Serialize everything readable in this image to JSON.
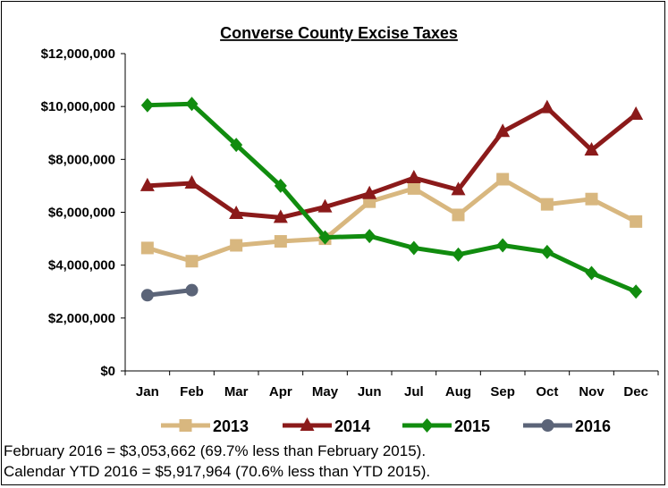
{
  "chart_data": {
    "type": "line",
    "title": "Converse County Excise Taxes",
    "xlabel": "",
    "ylabel": "",
    "categories": [
      "Jan",
      "Feb",
      "Mar",
      "Apr",
      "May",
      "Jun",
      "Jul",
      "Aug",
      "Sep",
      "Oct",
      "Nov",
      "Dec"
    ],
    "ylim": [
      0,
      12000000
    ],
    "yticks": [
      0,
      2000000,
      4000000,
      6000000,
      8000000,
      10000000,
      12000000
    ],
    "ytick_labels": [
      "$0",
      "$2,000,000",
      "$4,000,000",
      "$6,000,000",
      "$8,000,000",
      "$10,000,000",
      "$12,000,000"
    ],
    "grid": false,
    "legend_position": "bottom",
    "series": [
      {
        "name": "2013",
        "color": "#D8B77F",
        "marker": "square",
        "values": [
          4650000,
          4150000,
          4750000,
          4900000,
          5000000,
          6400000,
          6900000,
          5900000,
          7250000,
          6300000,
          6500000,
          5650000
        ]
      },
      {
        "name": "2014",
        "color": "#8B1A1A",
        "marker": "triangle",
        "values": [
          7000000,
          7100000,
          5950000,
          5800000,
          6200000,
          6700000,
          7300000,
          6850000,
          9050000,
          9950000,
          8350000,
          9700000
        ]
      },
      {
        "name": "2015",
        "color": "#118C0F",
        "marker": "diamond",
        "values": [
          10050000,
          10100000,
          8550000,
          7000000,
          5050000,
          5100000,
          4650000,
          4400000,
          4750000,
          4500000,
          3700000,
          3000000
        ]
      },
      {
        "name": "2016",
        "color": "#5B6478",
        "marker": "circle",
        "values": [
          2864302,
          3053662,
          null,
          null,
          null,
          null,
          null,
          null,
          null,
          null,
          null,
          null
        ]
      }
    ]
  },
  "notes": {
    "line1": "February 2016 = $3,053,662 (69.7% less than February 2015).",
    "line2": "Calendar YTD 2016 = $5,917,964 (70.6% less than YTD 2015)."
  }
}
